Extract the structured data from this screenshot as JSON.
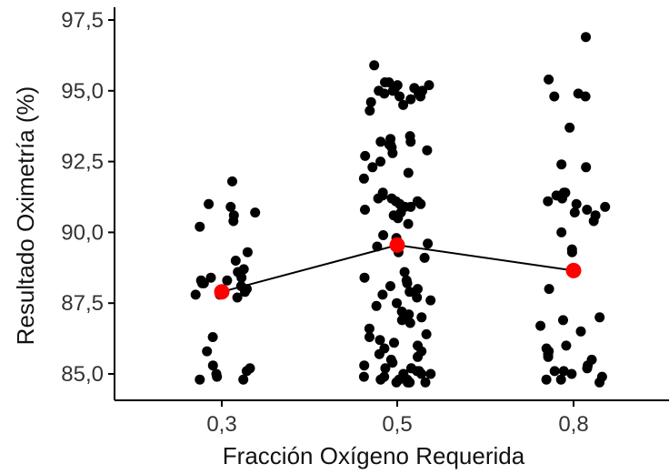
{
  "chart_data": {
    "type": "scatter",
    "title": "",
    "xlabel": "Fracción Oxígeno Requerida",
    "ylabel": "Resultado Oximetría (%)",
    "x_categories": [
      "0,3",
      "0,5",
      "0,8"
    ],
    "y_ticks": [
      85.0,
      87.5,
      90.0,
      92.5,
      95.0,
      97.5
    ],
    "y_tick_labels": [
      "85,0",
      "87,5",
      "90,0",
      "92,5",
      "95,0",
      "97,5"
    ],
    "ylim": [
      84.6,
      98.0
    ],
    "grid": false,
    "colors": {
      "points": "#000000",
      "mean": "#ff0000",
      "line": "#000000"
    },
    "means": [
      {
        "x": "0,3",
        "y": 87.9
      },
      {
        "x": "0,5",
        "y": 89.55
      },
      {
        "x": "0,8",
        "y": 88.65
      }
    ],
    "points": {
      "0,3": [
        91.8,
        91.0,
        90.9,
        90.7,
        90.6,
        90.4,
        90.2,
        89.3,
        89.0,
        88.7,
        88.6,
        88.4,
        88.4,
        88.3,
        88.3,
        88.2,
        88.2,
        88.1,
        88.0,
        87.9,
        87.8,
        87.8,
        87.7,
        86.3,
        85.8,
        85.3,
        85.2,
        85.1,
        85.0,
        84.9,
        84.8,
        84.8
      ],
      "0,5": [
        95.9,
        95.3,
        95.3,
        95.2,
        95.2,
        95.1,
        95.1,
        95.0,
        95.0,
        95.0,
        94.9,
        94.9,
        94.8,
        94.8,
        94.7,
        94.6,
        94.5,
        94.3,
        93.4,
        93.3,
        93.2,
        93.2,
        93.1,
        93.1,
        93.0,
        92.9,
        92.8,
        92.7,
        92.5,
        92.3,
        92.1,
        91.9,
        91.4,
        91.3,
        91.2,
        91.2,
        91.1,
        91.1,
        91.0,
        91.0,
        90.9,
        90.9,
        90.8,
        90.7,
        90.6,
        90.5,
        90.3,
        89.9,
        89.8,
        89.6,
        89.5,
        89.3,
        89.1,
        88.6,
        88.4,
        88.3,
        88.2,
        88.1,
        88.0,
        87.9,
        87.8,
        87.7,
        87.6,
        87.5,
        87.4,
        87.2,
        87.1,
        87.0,
        86.9,
        86.8,
        86.6,
        86.4,
        86.3,
        86.2,
        86.1,
        86.0,
        85.9,
        85.8,
        85.7,
        85.6,
        85.5,
        85.4,
        85.3,
        85.2,
        85.2,
        85.1,
        85.1,
        85.0,
        85.0,
        85.0,
        84.9,
        84.9,
        84.8,
        84.8,
        84.8,
        84.7,
        84.7,
        84.7,
        84.7,
        84.7
      ],
      "0,8": [
        96.9,
        95.4,
        94.9,
        94.8,
        94.8,
        93.7,
        92.4,
        92.3,
        91.4,
        91.4,
        91.3,
        91.2,
        91.1,
        91.0,
        90.9,
        90.8,
        90.7,
        90.6,
        90.4,
        90.0,
        89.4,
        89.3,
        88.0,
        87.0,
        86.9,
        86.7,
        86.5,
        86.0,
        85.9,
        85.8,
        85.7,
        85.6,
        85.5,
        85.3,
        85.2,
        85.1,
        85.1,
        85.0,
        84.9,
        84.8,
        84.8,
        84.7
      ]
    }
  }
}
